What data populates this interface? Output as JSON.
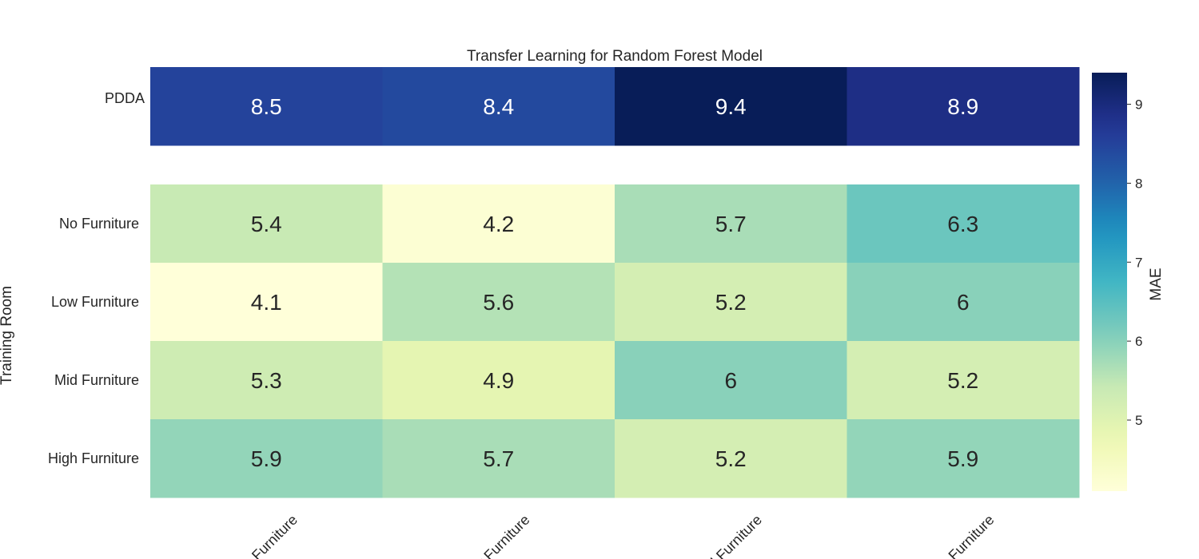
{
  "chart_data": {
    "type": "heatmap",
    "title": "Transfer Learning for Random Forest Model",
    "ylabel": "Training Room",
    "xlabel": "",
    "top_block": {
      "rows": [
        "PDDA"
      ],
      "values": [
        [
          8.5,
          8.4,
          9.4,
          8.9
        ]
      ]
    },
    "main_block": {
      "rows": [
        "No Furniture",
        "Low Furniture",
        "Mid Furniture",
        "High Furniture"
      ],
      "values": [
        [
          5.4,
          4.2,
          5.7,
          6.3
        ],
        [
          4.1,
          5.6,
          5.2,
          6
        ],
        [
          5.3,
          4.9,
          6,
          5.2
        ],
        [
          5.9,
          5.7,
          5.2,
          5.9
        ]
      ]
    },
    "columns": [
      "No Furniture",
      "Low Furniture",
      "Mid Furniture",
      "High Furniture"
    ],
    "colorbar": {
      "label": "MAE",
      "ticks": [
        5,
        6,
        7,
        8,
        9
      ],
      "range": [
        4.1,
        9.4
      ],
      "colormap": "YlGnBu"
    }
  }
}
